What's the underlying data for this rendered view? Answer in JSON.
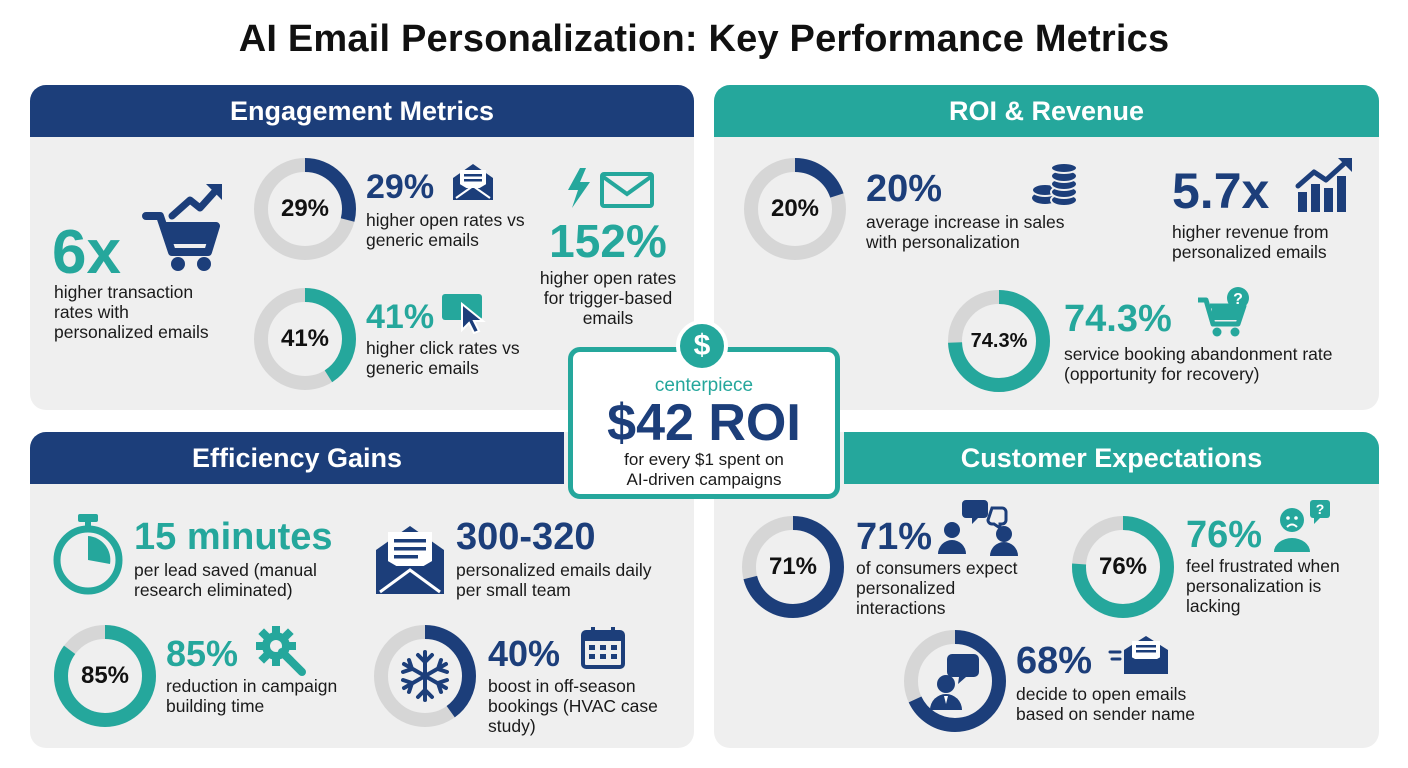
{
  "title": "AI Email Personalization: Key Performance Metrics",
  "colors": {
    "navy": "#1c3e7a",
    "teal": "#25a79c",
    "panel_bg": "#efefef",
    "ring_track": "#d6d6d6"
  },
  "engagement": {
    "header": "Engagement Metrics",
    "transaction": {
      "value": "6x",
      "desc": "higher transaction rates with personalized emails",
      "icon": "cart-trend-icon"
    },
    "open": {
      "ring_label": "29%",
      "ring_fraction": 0.29,
      "value": "29%",
      "desc": "higher open rates vs generic emails",
      "icon": "open-envelope-icon"
    },
    "click": {
      "ring_label": "41%",
      "ring_fraction": 0.41,
      "value": "41%",
      "desc": "higher click rates vs generic emails",
      "icon": "click-cursor-icon"
    },
    "trigger": {
      "value": "152%",
      "desc": "higher open rates for trigger-based emails",
      "icon": "lightning-envelope-icon"
    }
  },
  "roi": {
    "header": "ROI & Revenue",
    "sales": {
      "ring_label": "20%",
      "ring_fraction": 0.2,
      "value": "20%",
      "desc": "average increase in sales with personalization",
      "icon": "coins-icon"
    },
    "revenue": {
      "value": "5.7x",
      "desc": "higher revenue from personalized emails",
      "icon": "bar-chart-up-icon"
    },
    "abandonment": {
      "ring_label": "74.3%",
      "ring_fraction": 0.743,
      "value": "74.3%",
      "desc": "service booking abandonment rate (opportunity for recovery)",
      "icon": "cart-question-icon"
    }
  },
  "centerpiece": {
    "symbol": "$",
    "label": "centerpiece",
    "value": "$42 ROI",
    "desc_line1": "for every $1 spent on",
    "desc_line2": "AI-driven campaigns"
  },
  "efficiency": {
    "header": "Efficiency Gains",
    "time": {
      "value": "15 minutes",
      "desc": "per lead saved (manual research eliminated)",
      "icon": "stopwatch-icon"
    },
    "volume": {
      "value": "300-320",
      "desc": "personalized emails daily per small team",
      "icon": "envelope-letter-icon"
    },
    "build": {
      "ring_label": "85%",
      "ring_fraction": 0.85,
      "value": "85%",
      "desc": "reduction in campaign building time",
      "icon": "gear-wrench-icon"
    },
    "offseason": {
      "ring_label": "40%",
      "ring_fraction": 0.4,
      "value": "40%",
      "desc": "boost in off-season bookings (HVAC case study)",
      "icon": "calendar-icon"
    }
  },
  "customer": {
    "header": "Customer Expectations",
    "expect": {
      "ring_label": "71%",
      "ring_fraction": 0.71,
      "value": "71%",
      "desc": "of consumers expect personalized interactions",
      "icon": "people-chat-icon"
    },
    "frustrated": {
      "ring_label": "76%",
      "ring_fraction": 0.76,
      "value": "76%",
      "desc": "feel frustrated when personalization is lacking",
      "icon": "frustrated-person-icon"
    },
    "sender": {
      "ring_fraction": 0.68,
      "value": "68%",
      "desc": "decide to open emails based on sender name",
      "icon": "sender-envelope-icon"
    }
  }
}
